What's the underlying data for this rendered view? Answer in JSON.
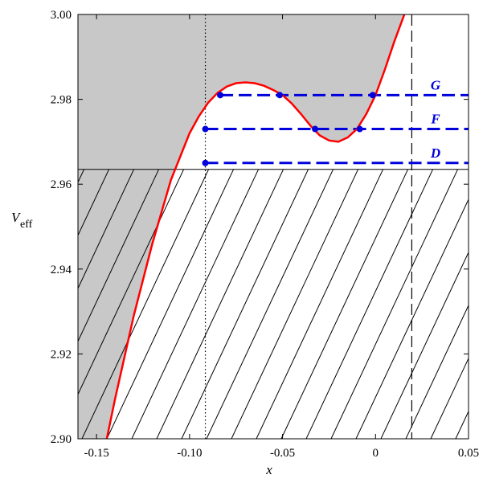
{
  "chart_data": {
    "type": "line",
    "title": "",
    "xlabel": "x",
    "ylabel": {
      "main": "V",
      "sub": "eff"
    },
    "xlim": [
      -0.16,
      0.05
    ],
    "ylim": [
      2.9,
      3.0
    ],
    "x_ticks": [
      -0.15,
      -0.1,
      -0.05,
      0,
      0.05
    ],
    "x_tick_labels": [
      "-0.15",
      "-0.10",
      "-0.05",
      "0",
      "0.05"
    ],
    "y_ticks": [
      2.9,
      2.92,
      2.94,
      2.96,
      2.98,
      3.0
    ],
    "y_tick_labels": [
      "2.90",
      "2.92",
      "2.94",
      "2.96",
      "2.98",
      "3.00"
    ],
    "grid": false,
    "colors": {
      "curve": "#ff0000",
      "levels": "#0000dd",
      "forbidden_fill": "#c8c8c8",
      "hatch": "#000000"
    },
    "curve": {
      "name": "",
      "x": [
        -0.1445,
        -0.14,
        -0.13,
        -0.12,
        -0.11,
        -0.1,
        -0.095,
        -0.09,
        -0.085,
        -0.08,
        -0.075,
        -0.07,
        -0.065,
        -0.06,
        -0.055,
        -0.05,
        -0.045,
        -0.04,
        -0.035,
        -0.03,
        -0.025,
        -0.02,
        -0.015,
        -0.01,
        -0.005,
        0.0,
        0.005,
        0.01,
        0.0155
      ],
      "y": [
        2.9,
        2.9095,
        2.929,
        2.946,
        2.961,
        2.972,
        2.976,
        2.9792,
        2.9815,
        2.983,
        2.9838,
        2.984,
        2.9838,
        2.9832,
        2.9822,
        2.981,
        2.979,
        2.9765,
        2.9738,
        2.9715,
        2.9703,
        2.97,
        2.971,
        2.973,
        2.9765,
        2.981,
        2.987,
        2.9935,
        3.0
      ]
    },
    "energy_level_line": 2.9635,
    "hatch_region": {
      "y_from": 2.9,
      "y_to": 2.9635
    },
    "vertical_lines": [
      {
        "x": -0.0915,
        "style": "dotted"
      },
      {
        "x": 0.0195,
        "style": "dashed"
      }
    ],
    "levels": [
      {
        "label": "G",
        "y": 2.981,
        "x_start": -0.0835,
        "points": [
          -0.0835,
          -0.0515,
          -0.0015
        ]
      },
      {
        "label": "F",
        "y": 2.973,
        "x_start": -0.0915,
        "points": [
          -0.0915,
          -0.0325,
          -0.0085
        ]
      },
      {
        "label": "D",
        "y": 2.965,
        "x_start": -0.0915,
        "points": [
          -0.0915
        ]
      }
    ]
  }
}
